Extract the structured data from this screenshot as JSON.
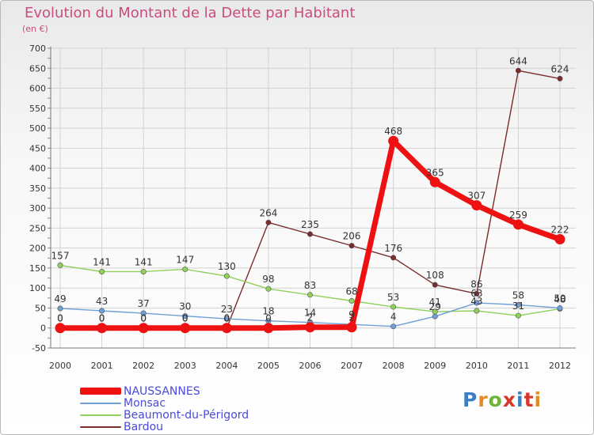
{
  "title": "Evolution du Montant de la Dette par Habitant",
  "subtitle": "(en €)",
  "logo": {
    "text": "Proxiti",
    "letter_colors": [
      "#3d7fc4",
      "#e38b22",
      "#6fb33b",
      "#d6392a",
      "#3d7fc4",
      "#d6392a",
      "#e38b22"
    ]
  },
  "chart_data": {
    "type": "line",
    "x": [
      "2000",
      "2001",
      "2002",
      "2003",
      "2004",
      "2005",
      "2006",
      "2007",
      "2008",
      "2009",
      "2010",
      "2011",
      "2012"
    ],
    "ylim": [
      -50,
      700
    ],
    "yticks": [
      "-50",
      "0",
      "50",
      "100",
      "150",
      "200",
      "250",
      "300",
      "350",
      "400",
      "450",
      "500",
      "550",
      "600",
      "650",
      "700"
    ],
    "grid": true,
    "legend_position": "bottom-left",
    "series": [
      {
        "name": "NAUSSANNES",
        "color": "#ee1111",
        "values": [
          0,
          0,
          0,
          0,
          0,
          0,
          2,
          2,
          468,
          365,
          307,
          259,
          222
        ],
        "labels": [
          "0",
          "0",
          "0",
          "0",
          "0",
          "0",
          "2",
          "2",
          "468",
          "365",
          "307",
          "259",
          "222"
        ]
      },
      {
        "name": "Monsac",
        "color": "#6f9fd8",
        "values": [
          49,
          43,
          37,
          30,
          23,
          18,
          14,
          9,
          4,
          29,
          63,
          58,
          50
        ],
        "labels": [
          "49",
          "43",
          "37",
          "30",
          "23",
          "18",
          "14",
          "9",
          "4",
          "29",
          "63",
          "58",
          "50"
        ]
      },
      {
        "name": "Beaumont-du-Périgord",
        "color": "#8fd15a",
        "values": [
          157,
          141,
          141,
          147,
          130,
          98,
          83,
          68,
          53,
          41,
          43,
          31,
          48
        ],
        "labels": [
          "157",
          "141",
          "141",
          "147",
          "130",
          "98",
          "83",
          "68",
          "53",
          "41",
          "43",
          "31",
          "48"
        ]
      },
      {
        "name": "Bardou",
        "color": "#7a2c2c",
        "values": [
          0,
          0,
          0,
          0,
          0,
          264,
          235,
          206,
          176,
          108,
          86,
          644,
          624
        ],
        "labels": [
          "0",
          "0",
          "0",
          "0",
          "0",
          "264",
          "235",
          "206",
          "176",
          "108",
          "86",
          "644",
          "624"
        ]
      }
    ]
  }
}
